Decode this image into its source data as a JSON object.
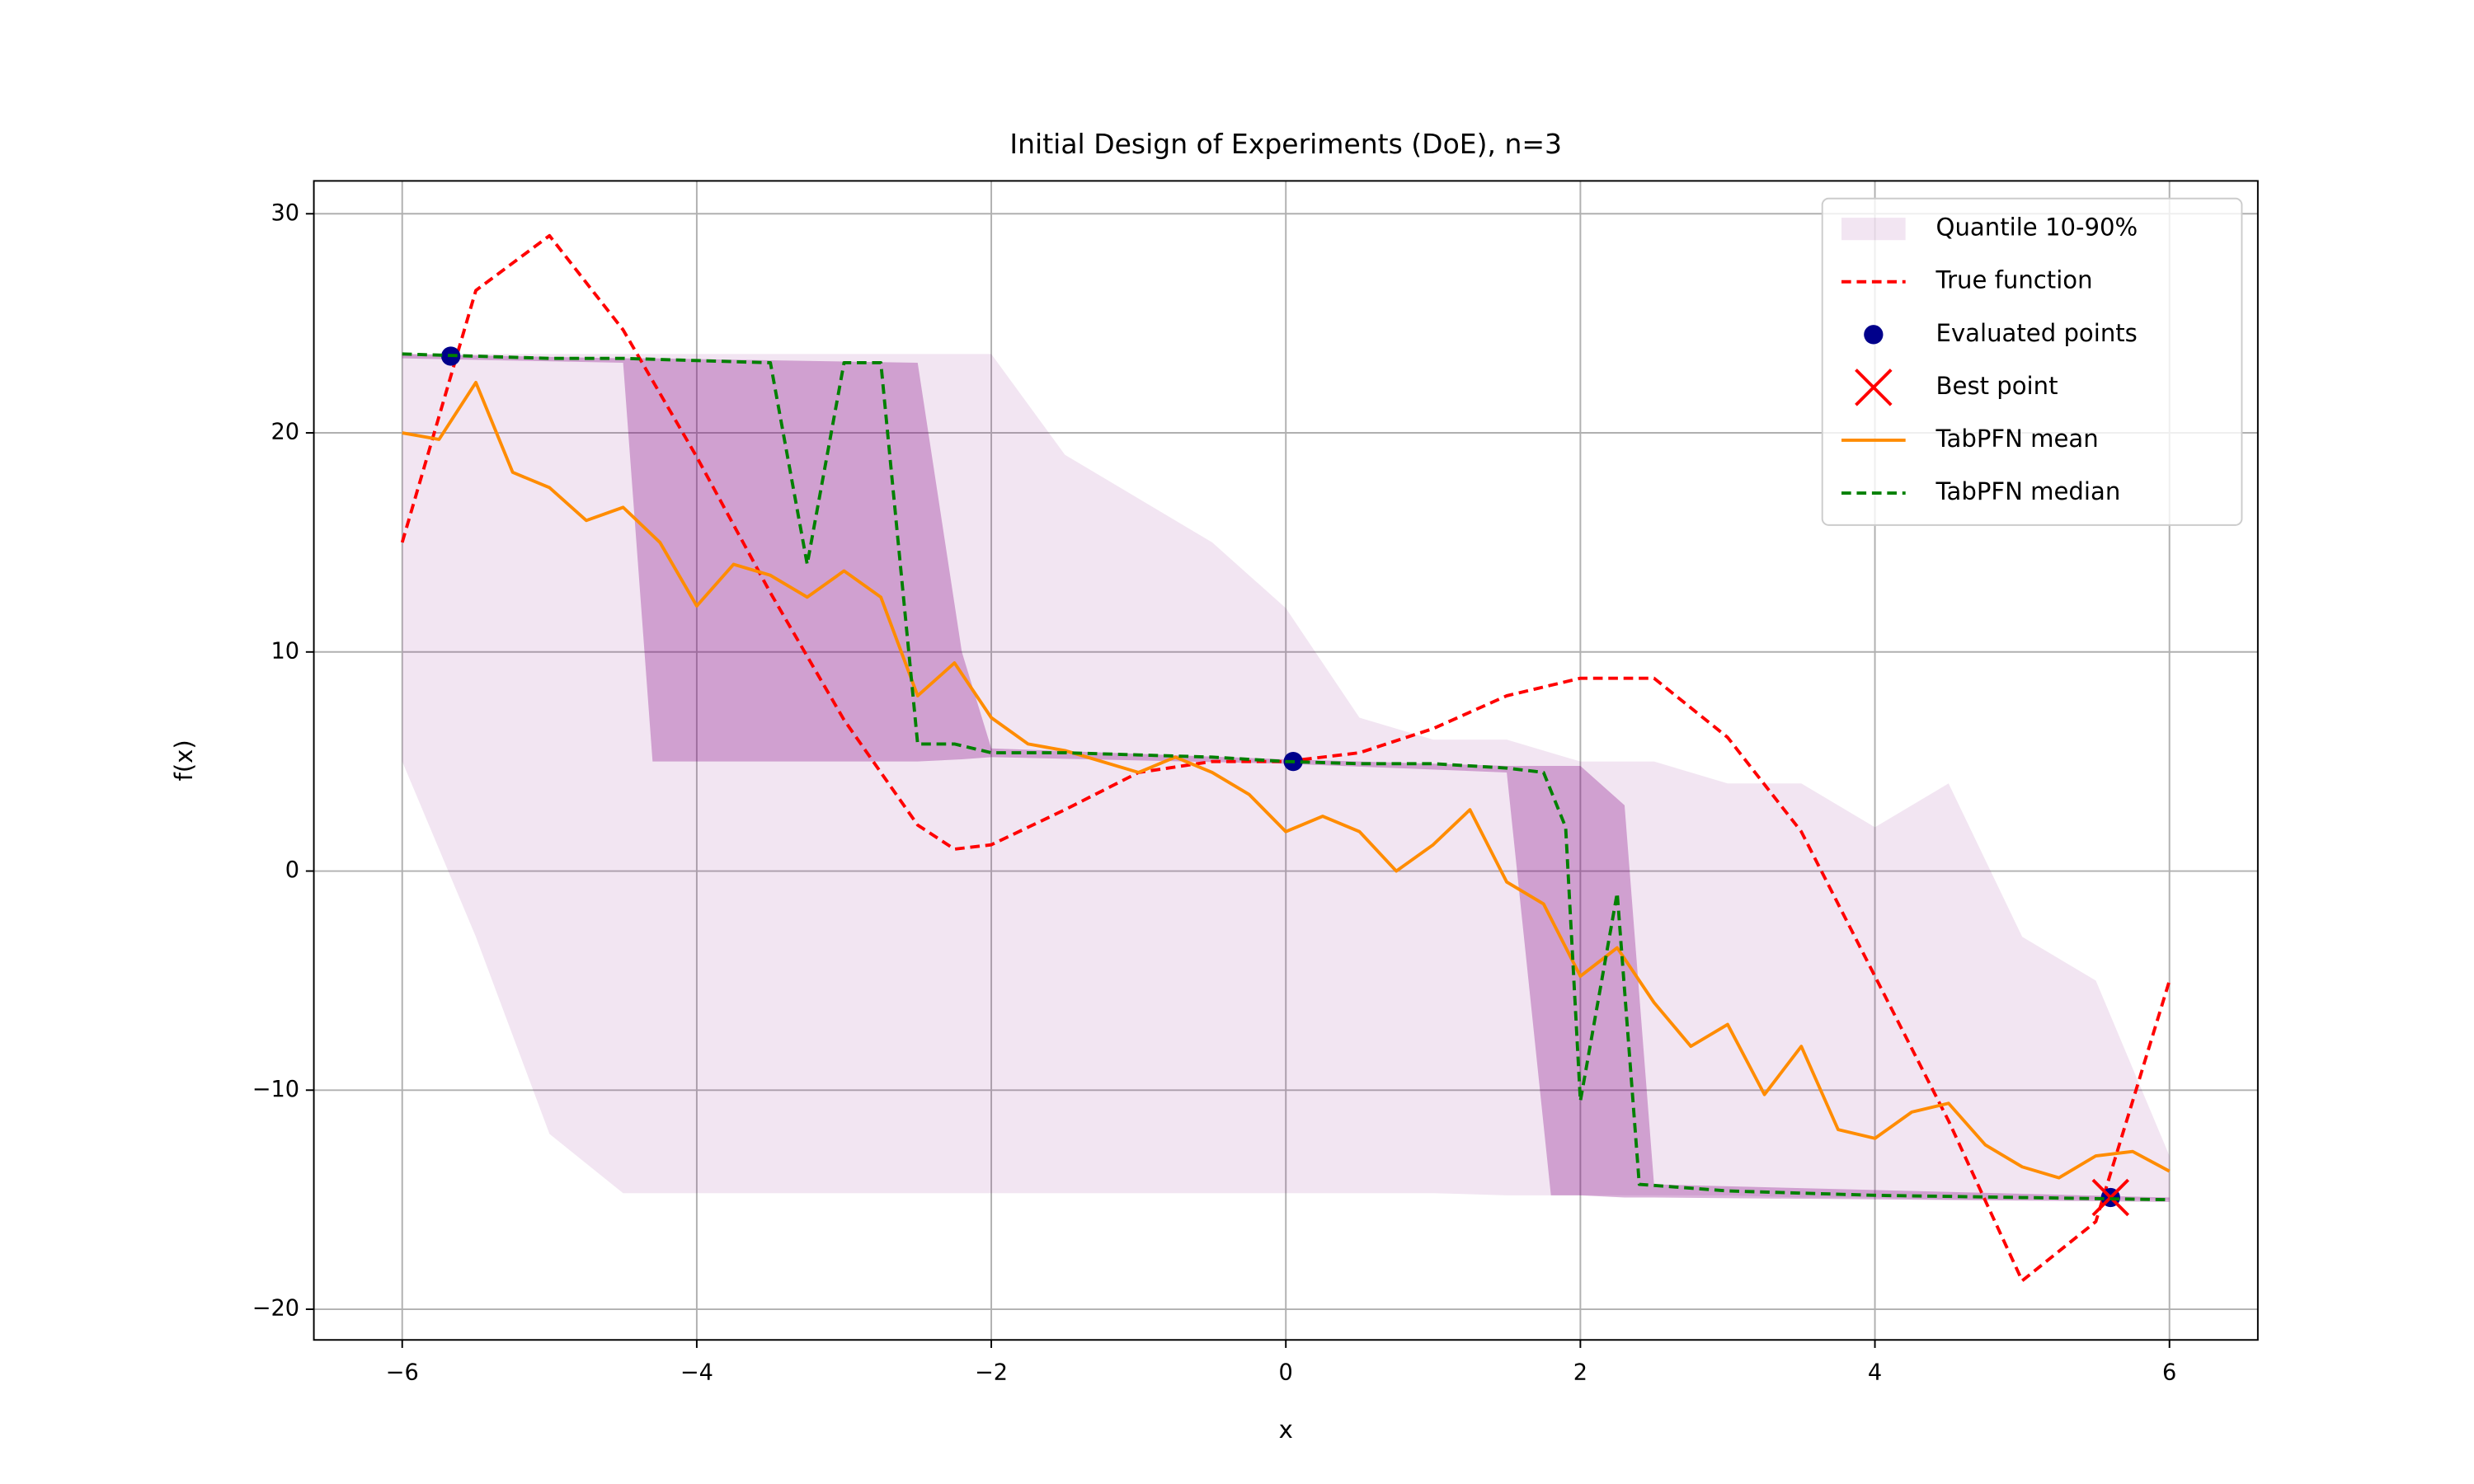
{
  "chart_data": {
    "type": "line",
    "title": "Initial Design of Experiments (DoE), n=3",
    "xlabel": "x",
    "ylabel": "f(x)",
    "xlim": [
      -6.6,
      6.6
    ],
    "ylim": [
      -21.4,
      31.5
    ],
    "xticks": [
      {
        "value": -6,
        "label": "−6"
      },
      {
        "value": -4,
        "label": "−4"
      },
      {
        "value": -2,
        "label": "−2"
      },
      0,
      2,
      4,
      6
    ],
    "yticks": [
      {
        "value": -20,
        "label": "−20"
      },
      {
        "value": -10,
        "label": "−10"
      },
      0,
      10,
      20,
      30
    ],
    "grid": true,
    "legend": "upper right",
    "series": [
      {
        "type": "area",
        "name": "Quantile 10-90%",
        "color": "#800080",
        "opacity": 0.1,
        "x": [
          -6,
          -5.5,
          -5,
          -4.5,
          -4,
          -3.5,
          -3,
          -2.5,
          -2,
          -1.5,
          -1,
          -0.5,
          0,
          0.5,
          1,
          1.5,
          2,
          2.5,
          3,
          3.5,
          4,
          4.5,
          5,
          5.5,
          6
        ],
        "upper": [
          23.6,
          23.6,
          23.6,
          23.6,
          23.6,
          23.6,
          23.6,
          23.6,
          23.6,
          19,
          17,
          15,
          12,
          7,
          6,
          6,
          5,
          5,
          4,
          4,
          2,
          4,
          -3,
          -5,
          -13
        ],
        "lower": [
          5,
          -3,
          -12,
          -14.7,
          -14.7,
          -14.7,
          -14.7,
          -14.7,
          -14.7,
          -14.7,
          -14.7,
          -14.7,
          -14.7,
          -14.7,
          -14.7,
          -14.8,
          -14.8,
          -14.8,
          -14.8,
          -14.9,
          -14.9,
          -15,
          -15,
          -15,
          -15
        ]
      },
      {
        "type": "area",
        "color": "#800080",
        "opacity": 0.3,
        "x": [
          -6,
          -4.5,
          -4.3,
          -2.5,
          -2.2,
          -2,
          0,
          1.5,
          1.8,
          2,
          2.3,
          2.5,
          6
        ],
        "upper": [
          23.6,
          23.4,
          23.4,
          23.2,
          10,
          5.6,
          5.1,
          4.8,
          4.8,
          4.8,
          3,
          -14.3,
          -14.9
        ],
        "lower": [
          23.4,
          23.2,
          5,
          5,
          5.1,
          5.2,
          4.9,
          4.5,
          -14.8,
          -14.8,
          -14.9,
          -14.9,
          -15.1
        ]
      },
      {
        "type": "line",
        "name": "True function",
        "color": "#ff0000",
        "dash": true,
        "x": [
          -6,
          -5.5,
          -5,
          -4.5,
          -4,
          -3.5,
          -3,
          -2.5,
          -2.25,
          -2,
          -1.5,
          -1,
          -0.5,
          0,
          0.5,
          1,
          1.5,
          2,
          2.5,
          3,
          3.5,
          4,
          4.5,
          5,
          5.5,
          6
        ],
        "values": [
          15,
          26.5,
          29,
          24.7,
          18.9,
          12.7,
          6.9,
          2.1,
          1.0,
          1.2,
          2.8,
          4.5,
          5.0,
          5.0,
          5.4,
          6.5,
          8,
          8.8,
          8.8,
          6.1,
          1.8,
          -4.8,
          -11.4,
          -18.7,
          -16,
          -5
        ]
      },
      {
        "type": "scatter",
        "name": "Evaluated points",
        "color": "#00008b",
        "marker": "o",
        "x": [
          -5.67,
          0.05,
          5.6
        ],
        "values": [
          23.5,
          5.0,
          -14.9
        ]
      },
      {
        "type": "scatter",
        "name": "Best point",
        "color": "#ff0000",
        "marker": "x",
        "x": [
          5.6
        ],
        "values": [
          -14.9
        ]
      },
      {
        "type": "line",
        "name": "TabPFN mean",
        "color": "#ff8c00",
        "dash": false,
        "x": [
          -6,
          -5.75,
          -5.5,
          -5.25,
          -5,
          -4.75,
          -4.5,
          -4.25,
          -4,
          -3.75,
          -3.5,
          -3.25,
          -3,
          -2.75,
          -2.5,
          -2.25,
          -2,
          -1.75,
          -1.5,
          -1.25,
          -1,
          -0.75,
          -0.5,
          -0.25,
          0,
          0.25,
          0.5,
          0.75,
          1,
          1.25,
          1.5,
          1.75,
          2,
          2.25,
          2.5,
          2.75,
          3,
          3.25,
          3.5,
          3.75,
          4,
          4.25,
          4.5,
          4.75,
          5,
          5.25,
          5.5,
          5.75,
          6
        ],
        "values": [
          20,
          19.7,
          22.3,
          18.2,
          17.5,
          16,
          16.6,
          15,
          12.1,
          14,
          13.5,
          12.5,
          13.7,
          12.5,
          8,
          9.5,
          7,
          5.8,
          5.5,
          5,
          4.5,
          5.2,
          4.5,
          3.5,
          1.8,
          2.5,
          1.8,
          0,
          1.2,
          2.8,
          -0.5,
          -1.5,
          -4.8,
          -3.5,
          -6,
          -8,
          -7,
          -10.2,
          -8,
          -11.8,
          -12.2,
          -11,
          -10.6,
          -12.5,
          -13.5,
          -14,
          -13,
          -12.8,
          -13.7
        ]
      },
      {
        "type": "line",
        "name": "TabPFN median",
        "color": "#008000",
        "dash": true,
        "x": [
          -6,
          -5.5,
          -5,
          -4.5,
          -4,
          -3.5,
          -3.25,
          -3,
          -2.75,
          -2.5,
          -2.25,
          -2,
          -1.5,
          -1,
          -0.5,
          0,
          0.5,
          1,
          1.5,
          1.75,
          1.9,
          2,
          2.25,
          2.4,
          3,
          4,
          5,
          6
        ],
        "values": [
          23.6,
          23.5,
          23.4,
          23.4,
          23.3,
          23.2,
          14,
          23.2,
          23.2,
          5.8,
          5.8,
          5.4,
          5.4,
          5.3,
          5.2,
          5.0,
          4.9,
          4.9,
          4.7,
          4.5,
          2,
          -10.5,
          -1,
          -14.3,
          -14.6,
          -14.8,
          -14.9,
          -15
        ]
      }
    ]
  }
}
